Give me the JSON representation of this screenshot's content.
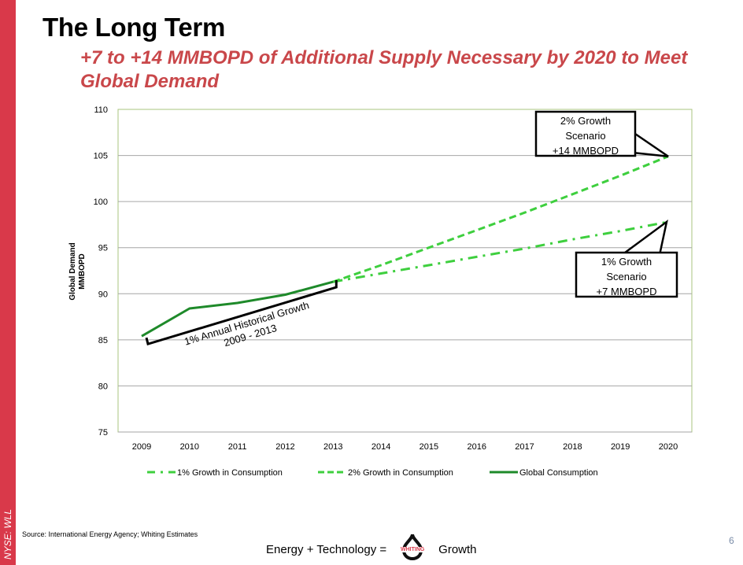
{
  "slide": {
    "title": "The Long Term",
    "subtitle": "+7 to +14 MMBOPD of Additional Supply Necessary by 2020 to Meet Global Demand",
    "side_label": "NYSE: WLL",
    "source": "Source: International Energy Agency; Whiting Estimates",
    "tagline_left": "Energy + Technology =",
    "logo_text": "WHITING",
    "tagline_right": "Growth",
    "page_number": "6",
    "colors": {
      "accent_red": "#d9394a",
      "subtitle_red": "#c9474a",
      "series_green": "#1e8a2a",
      "forecast_green": "#3ecf3e",
      "plot_border": "#a9c47f"
    }
  },
  "chart_data": {
    "type": "line",
    "title": "",
    "ylabel": "Global Demand MMBOPD",
    "ylabel_lines": [
      "Global Demand",
      "MMBOPD"
    ],
    "xlabel": "",
    "ylim": [
      75,
      110
    ],
    "yticks": [
      75,
      80,
      85,
      90,
      95,
      100,
      105,
      110
    ],
    "categories": [
      "2009",
      "2010",
      "2011",
      "2012",
      "2013",
      "2014",
      "2015",
      "2016",
      "2017",
      "2018",
      "2019",
      "2020"
    ],
    "grid": true,
    "legend": "bottom",
    "series": [
      {
        "name": "1% Growth in Consumption",
        "style": "dash-dot",
        "values": [
          null,
          null,
          null,
          null,
          91.3,
          92.2,
          93.1,
          94.0,
          94.9,
          95.9,
          96.8,
          97.8
        ]
      },
      {
        "name": "2% Growth in Consumption",
        "style": "dashed",
        "values": [
          null,
          null,
          null,
          null,
          91.3,
          93.1,
          95.0,
          96.9,
          98.8,
          100.8,
          102.8,
          104.9
        ]
      },
      {
        "name": "Global Consumption",
        "style": "solid",
        "values": [
          85.4,
          88.4,
          89.0,
          89.9,
          91.3,
          null,
          null,
          null,
          null,
          null,
          null,
          null
        ]
      }
    ],
    "annotations": [
      {
        "text_lines": [
          "2% Growth",
          "Scenario",
          "+14 MMBOPD"
        ],
        "points_to": {
          "x": "2020",
          "y": 104.9
        }
      },
      {
        "text_lines": [
          "1% Growth",
          "Scenario",
          "+7 MMBOPD"
        ],
        "points_to": {
          "x": "2020",
          "y": 97.8
        }
      },
      {
        "text_lines": [
          "1% Annual Historical Growth",
          "2009 - 2013"
        ],
        "bracket_from": "2009",
        "bracket_to": "2013"
      }
    ]
  }
}
